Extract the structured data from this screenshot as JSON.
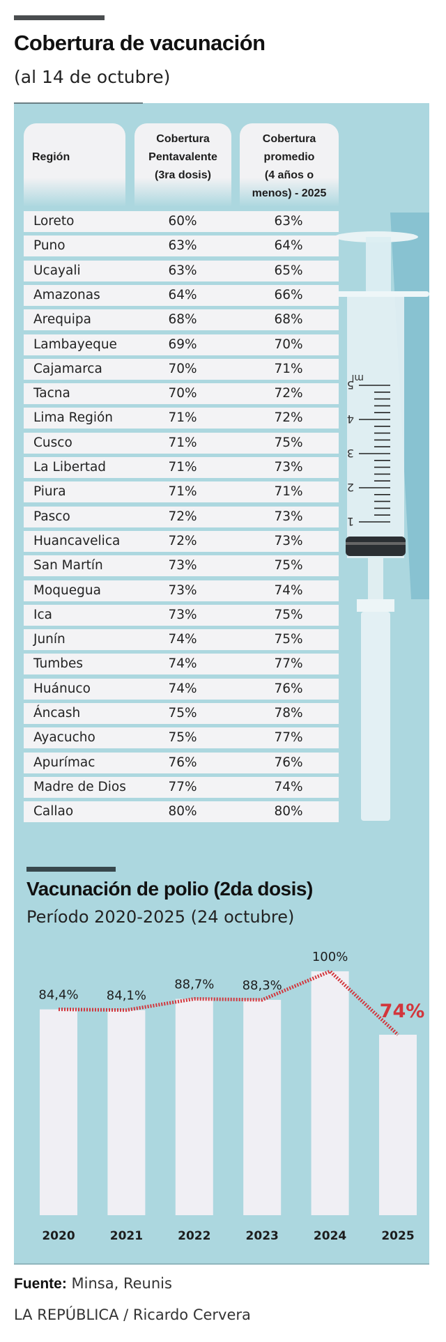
{
  "header": {
    "title": "Cobertura de vacunación",
    "subtitle": "(al 14 de octubre)"
  },
  "table": {
    "columns": [
      "Región",
      "Cobertura Pentavalente (3ra dosis)",
      "Cobertura promedio (4 años o menos) - 2025"
    ],
    "column_lines": [
      [
        "Región"
      ],
      [
        "Cobertura",
        "Pentavalente",
        "(3ra dosis)"
      ],
      [
        "Cobertura",
        "promedio",
        "(4 años o",
        "menos) - 2025"
      ]
    ],
    "rows": [
      [
        "Loreto",
        "60%",
        "63%"
      ],
      [
        "Puno",
        "63%",
        "64%"
      ],
      [
        "Ucayali",
        "63%",
        "65%"
      ],
      [
        "Amazonas",
        "64%",
        "66%"
      ],
      [
        "Arequipa",
        "68%",
        "68%"
      ],
      [
        "Lambayeque",
        "69%",
        "70%"
      ],
      [
        "Cajamarca",
        "70%",
        "71%"
      ],
      [
        "Tacna",
        "70%",
        "72%"
      ],
      [
        "Lima Región",
        "71%",
        "72%"
      ],
      [
        "Cusco",
        "71%",
        "75%"
      ],
      [
        "La Libertad",
        "71%",
        "73%"
      ],
      [
        "Piura",
        "71%",
        "71%"
      ],
      [
        "Pasco",
        "72%",
        "73%"
      ],
      [
        "Huancavelica",
        "72%",
        "73%"
      ],
      [
        "San Martín",
        "73%",
        "75%"
      ],
      [
        "Moquegua",
        "73%",
        "74%"
      ],
      [
        "Ica",
        "73%",
        "75%"
      ],
      [
        "Junín",
        "74%",
        "75%"
      ],
      [
        "Tumbes",
        "74%",
        "77%"
      ],
      [
        "Huánuco",
        "74%",
        "76%"
      ],
      [
        "Áncash",
        "75%",
        "78%"
      ],
      [
        "Ayacucho",
        "75%",
        "77%"
      ],
      [
        "Apurímac",
        "76%",
        "76%"
      ],
      [
        "Madre de Dios",
        "77%",
        "74%"
      ],
      [
        "Callao",
        "80%",
        "80%"
      ]
    ]
  },
  "syringe": {
    "icon": "syringe-illustration",
    "scale_labels": [
      "5",
      "4",
      "3",
      "2",
      "1"
    ],
    "unit": "ml"
  },
  "chart_data": {
    "type": "bar",
    "title": "Vacunación de polio (2da dosis)",
    "subtitle": "Período 2020-2025 (24 octubre)",
    "categories": [
      "2020",
      "2021",
      "2022",
      "2023",
      "2024",
      "2025"
    ],
    "values": [
      84.4,
      84.1,
      88.7,
      88.3,
      100,
      74
    ],
    "data_labels": [
      "84,4%",
      "84,1%",
      "88,7%",
      "88,3%",
      "100%",
      "74%"
    ],
    "ylim": [
      0,
      100
    ],
    "grid": false,
    "trend_line": "dotted",
    "colors": {
      "background": "#acd7df",
      "bar": "#f0eff4",
      "trend": "#d2363c",
      "highlight_label": "#d2363c"
    }
  },
  "footer": {
    "source_label": "Fuente:",
    "source": "Minsa, Reunis",
    "credit": "LA REPÚBLICA / Ricardo Cervera"
  }
}
